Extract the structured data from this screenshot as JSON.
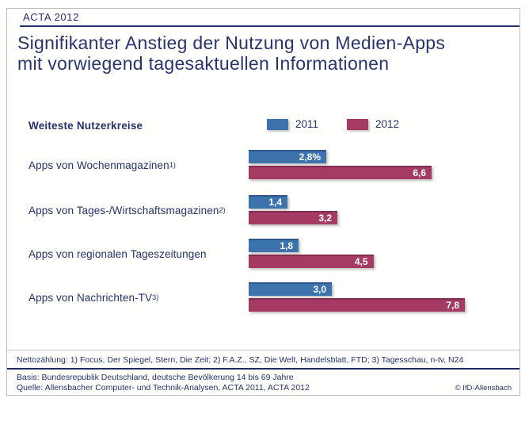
{
  "header": {
    "label": "ACTA 2012"
  },
  "title": {
    "line1": "Signifikanter Anstieg der Nutzung von Medien-Apps",
    "line2": "mit vorwiegend tagesaktuellen Informationen"
  },
  "chart_data": {
    "type": "bar",
    "orientation": "horizontal",
    "subtitle": "Weiteste Nutzerkreise",
    "unit": "percent",
    "xlim": [
      0,
      9.8
    ],
    "grid": false,
    "legend_position": "top",
    "categories": [
      "Apps von Wochenmagazinen",
      "Apps von Tages-/Wirtschaftsmagazinen",
      "Apps von regionalen Tageszeitungen",
      "Apps von Nachrichten-TV"
    ],
    "category_sups": [
      "1)",
      "2)",
      "",
      "3)"
    ],
    "series": [
      {
        "name": "2011",
        "color": "#3c73ac",
        "values": [
          2.8,
          1.4,
          1.8,
          3.0
        ],
        "value_labels": [
          "2,8%",
          "1,4",
          "1,8",
          "3,0"
        ]
      },
      {
        "name": "2012",
        "color": "#a53a63",
        "values": [
          6.6,
          3.2,
          4.5,
          7.8
        ],
        "value_labels": [
          "6,6",
          "3,2",
          "4,5",
          "7,8"
        ]
      }
    ]
  },
  "footnotes": {
    "netto": "Nettozählung: 1) Focus, Der Spiegel, Stern, Die Zeit; 2) F.A.Z., SZ, Die Welt, Handelsblatt, FTD; 3) Tagesschau, n-tv, N24",
    "basis": "Basis: Bundesrepublik Deutschland, deutsche Bevölkerung 14 bis 69 Jahre",
    "quelle": "Quelle: Allensbacher Computer- und Technik-Analysen, ACTA 2011, ACTA 2012",
    "copyright": "© IfD-Allensbach"
  },
  "colors": {
    "navy": "#26316d",
    "blue_2011": "#3c73ac",
    "magenta_2012": "#a53a63",
    "frame": "#bdbdbd"
  }
}
